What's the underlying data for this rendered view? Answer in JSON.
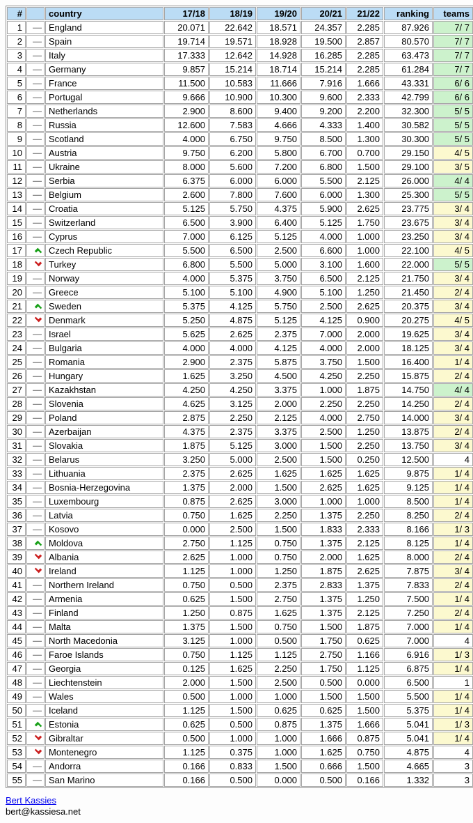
{
  "table": {
    "columns": [
      {
        "key": "rank",
        "label": "#",
        "align": "right"
      },
      {
        "key": "move",
        "label": "",
        "align": "right"
      },
      {
        "key": "country",
        "label": "country",
        "align": "left"
      },
      {
        "key": "y1",
        "label": "17/18",
        "align": "right"
      },
      {
        "key": "y2",
        "label": "18/19",
        "align": "right"
      },
      {
        "key": "y3",
        "label": "19/20",
        "align": "right"
      },
      {
        "key": "y4",
        "label": "20/21",
        "align": "right"
      },
      {
        "key": "y5",
        "label": "21/22",
        "align": "right"
      },
      {
        "key": "ranking",
        "label": "ranking",
        "align": "right"
      },
      {
        "key": "teams",
        "label": "teams",
        "align": "right"
      }
    ],
    "rows": [
      {
        "rank": "1",
        "move": "same",
        "country": "England",
        "seasons": [
          "20.071",
          "22.642",
          "18.571",
          "24.357",
          "2.285"
        ],
        "ranking": "87.926",
        "teams": "7/ 7",
        "teams_bg": "green"
      },
      {
        "rank": "2",
        "move": "same",
        "country": "Spain",
        "seasons": [
          "19.714",
          "19.571",
          "18.928",
          "19.500",
          "2.857"
        ],
        "ranking": "80.570",
        "teams": "7/ 7",
        "teams_bg": "green"
      },
      {
        "rank": "3",
        "move": "same",
        "country": "Italy",
        "seasons": [
          "17.333",
          "12.642",
          "14.928",
          "16.285",
          "2.285"
        ],
        "ranking": "63.473",
        "teams": "7/ 7",
        "teams_bg": "green"
      },
      {
        "rank": "4",
        "move": "same",
        "country": "Germany",
        "seasons": [
          "9.857",
          "15.214",
          "18.714",
          "15.214",
          "2.285"
        ],
        "ranking": "61.284",
        "teams": "7/ 7",
        "teams_bg": "green"
      },
      {
        "rank": "5",
        "move": "same",
        "country": "France",
        "seasons": [
          "11.500",
          "10.583",
          "11.666",
          "7.916",
          "1.666"
        ],
        "ranking": "43.331",
        "teams": "6/ 6",
        "teams_bg": "green"
      },
      {
        "rank": "6",
        "move": "same",
        "country": "Portugal",
        "seasons": [
          "9.666",
          "10.900",
          "10.300",
          "9.600",
          "2.333"
        ],
        "ranking": "42.799",
        "teams": "6/ 6",
        "teams_bg": "green"
      },
      {
        "rank": "7",
        "move": "same",
        "country": "Netherlands",
        "seasons": [
          "2.900",
          "8.600",
          "9.400",
          "9.200",
          "2.200"
        ],
        "ranking": "32.300",
        "teams": "5/ 5",
        "teams_bg": "green"
      },
      {
        "rank": "8",
        "move": "same",
        "country": "Russia",
        "seasons": [
          "12.600",
          "7.583",
          "4.666",
          "4.333",
          "1.400"
        ],
        "ranking": "30.582",
        "teams": "5/ 5",
        "teams_bg": "green"
      },
      {
        "rank": "9",
        "move": "same",
        "country": "Scotland",
        "seasons": [
          "4.000",
          "6.750",
          "9.750",
          "8.500",
          "1.300"
        ],
        "ranking": "30.300",
        "teams": "5/ 5",
        "teams_bg": "green"
      },
      {
        "rank": "10",
        "move": "same",
        "country": "Austria",
        "seasons": [
          "9.750",
          "6.200",
          "5.800",
          "6.700",
          "0.700"
        ],
        "ranking": "29.150",
        "teams": "4/ 5",
        "teams_bg": "yellow"
      },
      {
        "rank": "11",
        "move": "same",
        "country": "Ukraine",
        "seasons": [
          "8.000",
          "5.600",
          "7.200",
          "6.800",
          "1.500"
        ],
        "ranking": "29.100",
        "teams": "3/ 5",
        "teams_bg": "yellow"
      },
      {
        "rank": "12",
        "move": "same",
        "country": "Serbia",
        "seasons": [
          "6.375",
          "6.000",
          "6.000",
          "5.500",
          "2.125"
        ],
        "ranking": "26.000",
        "teams": "4/ 4",
        "teams_bg": "green"
      },
      {
        "rank": "13",
        "move": "same",
        "country": "Belgium",
        "seasons": [
          "2.600",
          "7.800",
          "7.600",
          "6.000",
          "1.300"
        ],
        "ranking": "25.300",
        "teams": "5/ 5",
        "teams_bg": "green"
      },
      {
        "rank": "14",
        "move": "same",
        "country": "Croatia",
        "seasons": [
          "5.125",
          "5.750",
          "4.375",
          "5.900",
          "2.625"
        ],
        "ranking": "23.775",
        "teams": "3/ 4",
        "teams_bg": "yellow"
      },
      {
        "rank": "15",
        "move": "same",
        "country": "Switzerland",
        "seasons": [
          "6.500",
          "3.900",
          "6.400",
          "5.125",
          "1.750"
        ],
        "ranking": "23.675",
        "teams": "3/ 4",
        "teams_bg": "yellow"
      },
      {
        "rank": "16",
        "move": "same",
        "country": "Cyprus",
        "seasons": [
          "7.000",
          "6.125",
          "5.125",
          "4.000",
          "1.000"
        ],
        "ranking": "23.250",
        "teams": "3/ 4",
        "teams_bg": "yellow"
      },
      {
        "rank": "17",
        "move": "up",
        "country": "Czech Republic",
        "seasons": [
          "5.500",
          "6.500",
          "2.500",
          "6.600",
          "1.000"
        ],
        "ranking": "22.100",
        "teams": "4/ 5",
        "teams_bg": "yellow"
      },
      {
        "rank": "18",
        "move": "down",
        "country": "Turkey",
        "seasons": [
          "6.800",
          "5.500",
          "5.000",
          "3.100",
          "1.600"
        ],
        "ranking": "22.000",
        "teams": "5/ 5",
        "teams_bg": "green"
      },
      {
        "rank": "19",
        "move": "same",
        "country": "Norway",
        "seasons": [
          "4.000",
          "5.375",
          "3.750",
          "6.500",
          "2.125"
        ],
        "ranking": "21.750",
        "teams": "3/ 4",
        "teams_bg": "yellow"
      },
      {
        "rank": "20",
        "move": "same",
        "country": "Greece",
        "seasons": [
          "5.100",
          "5.100",
          "4.900",
          "5.100",
          "1.250"
        ],
        "ranking": "21.450",
        "teams": "2/ 4",
        "teams_bg": "yellow"
      },
      {
        "rank": "21",
        "move": "up",
        "country": "Sweden",
        "seasons": [
          "5.375",
          "4.125",
          "5.750",
          "2.500",
          "2.625"
        ],
        "ranking": "20.375",
        "teams": "3/ 4",
        "teams_bg": "yellow"
      },
      {
        "rank": "22",
        "move": "down",
        "country": "Denmark",
        "seasons": [
          "5.250",
          "4.875",
          "5.125",
          "4.125",
          "0.900"
        ],
        "ranking": "20.275",
        "teams": "4/ 5",
        "teams_bg": "yellow"
      },
      {
        "rank": "23",
        "move": "same",
        "country": "Israel",
        "seasons": [
          "5.625",
          "2.625",
          "2.375",
          "7.000",
          "2.000"
        ],
        "ranking": "19.625",
        "teams": "3/ 4",
        "teams_bg": "yellow"
      },
      {
        "rank": "24",
        "move": "same",
        "country": "Bulgaria",
        "seasons": [
          "4.000",
          "4.000",
          "4.125",
          "4.000",
          "2.000"
        ],
        "ranking": "18.125",
        "teams": "3/ 4",
        "teams_bg": "yellow"
      },
      {
        "rank": "25",
        "move": "same",
        "country": "Romania",
        "seasons": [
          "2.900",
          "2.375",
          "5.875",
          "3.750",
          "1.500"
        ],
        "ranking": "16.400",
        "teams": "1/ 4",
        "teams_bg": "yellow"
      },
      {
        "rank": "26",
        "move": "same",
        "country": "Hungary",
        "seasons": [
          "1.625",
          "3.250",
          "4.500",
          "4.250",
          "2.250"
        ],
        "ranking": "15.875",
        "teams": "2/ 4",
        "teams_bg": "yellow"
      },
      {
        "rank": "27",
        "move": "same",
        "country": "Kazakhstan",
        "seasons": [
          "4.250",
          "4.250",
          "3.375",
          "1.000",
          "1.875"
        ],
        "ranking": "14.750",
        "teams": "4/ 4",
        "teams_bg": "green"
      },
      {
        "rank": "28",
        "move": "same",
        "country": "Slovenia",
        "seasons": [
          "4.625",
          "3.125",
          "2.000",
          "2.250",
          "2.250"
        ],
        "ranking": "14.250",
        "teams": "2/ 4",
        "teams_bg": "yellow"
      },
      {
        "rank": "29",
        "move": "same",
        "country": "Poland",
        "seasons": [
          "2.875",
          "2.250",
          "2.125",
          "4.000",
          "2.750"
        ],
        "ranking": "14.000",
        "teams": "3/ 4",
        "teams_bg": "yellow"
      },
      {
        "rank": "30",
        "move": "same",
        "country": "Azerbaijan",
        "seasons": [
          "4.375",
          "2.375",
          "3.375",
          "2.500",
          "1.250"
        ],
        "ranking": "13.875",
        "teams": "2/ 4",
        "teams_bg": "yellow"
      },
      {
        "rank": "31",
        "move": "same",
        "country": "Slovakia",
        "seasons": [
          "1.875",
          "5.125",
          "3.000",
          "1.500",
          "2.250"
        ],
        "ranking": "13.750",
        "teams": "3/ 4",
        "teams_bg": "yellow"
      },
      {
        "rank": "32",
        "move": "same",
        "country": "Belarus",
        "seasons": [
          "3.250",
          "5.000",
          "2.500",
          "1.500",
          "0.250"
        ],
        "ranking": "12.500",
        "teams": "4",
        "teams_bg": "white"
      },
      {
        "rank": "33",
        "move": "same",
        "country": "Lithuania",
        "seasons": [
          "2.375",
          "2.625",
          "1.625",
          "1.625",
          "1.625"
        ],
        "ranking": "9.875",
        "teams": "1/ 4",
        "teams_bg": "yellow"
      },
      {
        "rank": "34",
        "move": "same",
        "country": "Bosnia-Herzegovina",
        "seasons": [
          "1.375",
          "2.000",
          "1.500",
          "2.625",
          "1.625"
        ],
        "ranking": "9.125",
        "teams": "1/ 4",
        "teams_bg": "yellow"
      },
      {
        "rank": "35",
        "move": "same",
        "country": "Luxembourg",
        "seasons": [
          "0.875",
          "2.625",
          "3.000",
          "1.000",
          "1.000"
        ],
        "ranking": "8.500",
        "teams": "1/ 4",
        "teams_bg": "yellow"
      },
      {
        "rank": "36",
        "move": "same",
        "country": "Latvia",
        "seasons": [
          "0.750",
          "1.625",
          "2.250",
          "1.375",
          "2.250"
        ],
        "ranking": "8.250",
        "teams": "2/ 4",
        "teams_bg": "yellow"
      },
      {
        "rank": "37",
        "move": "same",
        "country": "Kosovo",
        "seasons": [
          "0.000",
          "2.500",
          "1.500",
          "1.833",
          "2.333"
        ],
        "ranking": "8.166",
        "teams": "1/ 3",
        "teams_bg": "yellow"
      },
      {
        "rank": "38",
        "move": "up",
        "country": "Moldova",
        "seasons": [
          "2.750",
          "1.125",
          "0.750",
          "1.375",
          "2.125"
        ],
        "ranking": "8.125",
        "teams": "1/ 4",
        "teams_bg": "yellow"
      },
      {
        "rank": "39",
        "move": "down",
        "country": "Albania",
        "seasons": [
          "2.625",
          "1.000",
          "0.750",
          "2.000",
          "1.625"
        ],
        "ranking": "8.000",
        "teams": "2/ 4",
        "teams_bg": "yellow"
      },
      {
        "rank": "40",
        "move": "down",
        "country": "Ireland",
        "seasons": [
          "1.125",
          "1.000",
          "1.250",
          "1.875",
          "2.625"
        ],
        "ranking": "7.875",
        "teams": "3/ 4",
        "teams_bg": "yellow"
      },
      {
        "rank": "41",
        "move": "same",
        "country": "Northern Ireland",
        "seasons": [
          "0.750",
          "0.500",
          "2.375",
          "2.833",
          "1.375"
        ],
        "ranking": "7.833",
        "teams": "2/ 4",
        "teams_bg": "yellow"
      },
      {
        "rank": "42",
        "move": "same",
        "country": "Armenia",
        "seasons": [
          "0.625",
          "1.500",
          "2.750",
          "1.375",
          "1.250"
        ],
        "ranking": "7.500",
        "teams": "1/ 4",
        "teams_bg": "yellow"
      },
      {
        "rank": "43",
        "move": "same",
        "country": "Finland",
        "seasons": [
          "1.250",
          "0.875",
          "1.625",
          "1.375",
          "2.125"
        ],
        "ranking": "7.250",
        "teams": "2/ 4",
        "teams_bg": "yellow"
      },
      {
        "rank": "44",
        "move": "same",
        "country": "Malta",
        "seasons": [
          "1.375",
          "1.500",
          "0.750",
          "1.500",
          "1.875"
        ],
        "ranking": "7.000",
        "teams": "1/ 4",
        "teams_bg": "yellow"
      },
      {
        "rank": "45",
        "move": "same",
        "country": "North Macedonia",
        "seasons": [
          "3.125",
          "1.000",
          "0.500",
          "1.750",
          "0.625"
        ],
        "ranking": "7.000",
        "teams": "4",
        "teams_bg": "white"
      },
      {
        "rank": "46",
        "move": "same",
        "country": "Faroe Islands",
        "seasons": [
          "0.750",
          "1.125",
          "1.125",
          "2.750",
          "1.166"
        ],
        "ranking": "6.916",
        "teams": "1/ 3",
        "teams_bg": "yellow"
      },
      {
        "rank": "47",
        "move": "same",
        "country": "Georgia",
        "seasons": [
          "0.125",
          "1.625",
          "2.250",
          "1.750",
          "1.125"
        ],
        "ranking": "6.875",
        "teams": "1/ 4",
        "teams_bg": "yellow"
      },
      {
        "rank": "48",
        "move": "same",
        "country": "Liechtenstein",
        "seasons": [
          "2.000",
          "1.500",
          "2.500",
          "0.500",
          "0.000"
        ],
        "ranking": "6.500",
        "teams": "1",
        "teams_bg": "white"
      },
      {
        "rank": "49",
        "move": "same",
        "country": "Wales",
        "seasons": [
          "0.500",
          "1.000",
          "1.000",
          "1.500",
          "1.500"
        ],
        "ranking": "5.500",
        "teams": "1/ 4",
        "teams_bg": "yellow"
      },
      {
        "rank": "50",
        "move": "same",
        "country": "Iceland",
        "seasons": [
          "1.125",
          "1.500",
          "0.625",
          "0.625",
          "1.500"
        ],
        "ranking": "5.375",
        "teams": "1/ 4",
        "teams_bg": "yellow"
      },
      {
        "rank": "51",
        "move": "up",
        "country": "Estonia",
        "seasons": [
          "0.625",
          "0.500",
          "0.875",
          "1.375",
          "1.666"
        ],
        "ranking": "5.041",
        "teams": "1/ 3",
        "teams_bg": "yellow"
      },
      {
        "rank": "52",
        "move": "down",
        "country": "Gibraltar",
        "seasons": [
          "0.500",
          "1.000",
          "1.000",
          "1.666",
          "0.875"
        ],
        "ranking": "5.041",
        "teams": "1/ 4",
        "teams_bg": "yellow"
      },
      {
        "rank": "53",
        "move": "down",
        "country": "Montenegro",
        "seasons": [
          "1.125",
          "0.375",
          "1.000",
          "1.625",
          "0.750"
        ],
        "ranking": "4.875",
        "teams": "4",
        "teams_bg": "white"
      },
      {
        "rank": "54",
        "move": "same",
        "country": "Andorra",
        "seasons": [
          "0.166",
          "0.833",
          "1.500",
          "0.666",
          "1.500"
        ],
        "ranking": "4.665",
        "teams": "3",
        "teams_bg": "white"
      },
      {
        "rank": "55",
        "move": "same",
        "country": "San Marino",
        "seasons": [
          "0.166",
          "0.500",
          "0.000",
          "0.500",
          "0.166"
        ],
        "ranking": "1.332",
        "teams": "3",
        "teams_bg": "white"
      }
    ]
  },
  "icons": {
    "move_same": "—"
  },
  "footer": {
    "link_text": "Bert Kassies",
    "email": "bert@kassiesa.net"
  },
  "colors": {
    "header_bg": "#bbdcf5",
    "green": "#ccf2cc",
    "yellow": "#fcf9cf",
    "up": "#18a018",
    "down": "#cc2020",
    "dash": "#8c8c8c",
    "link": "#0000ee"
  }
}
